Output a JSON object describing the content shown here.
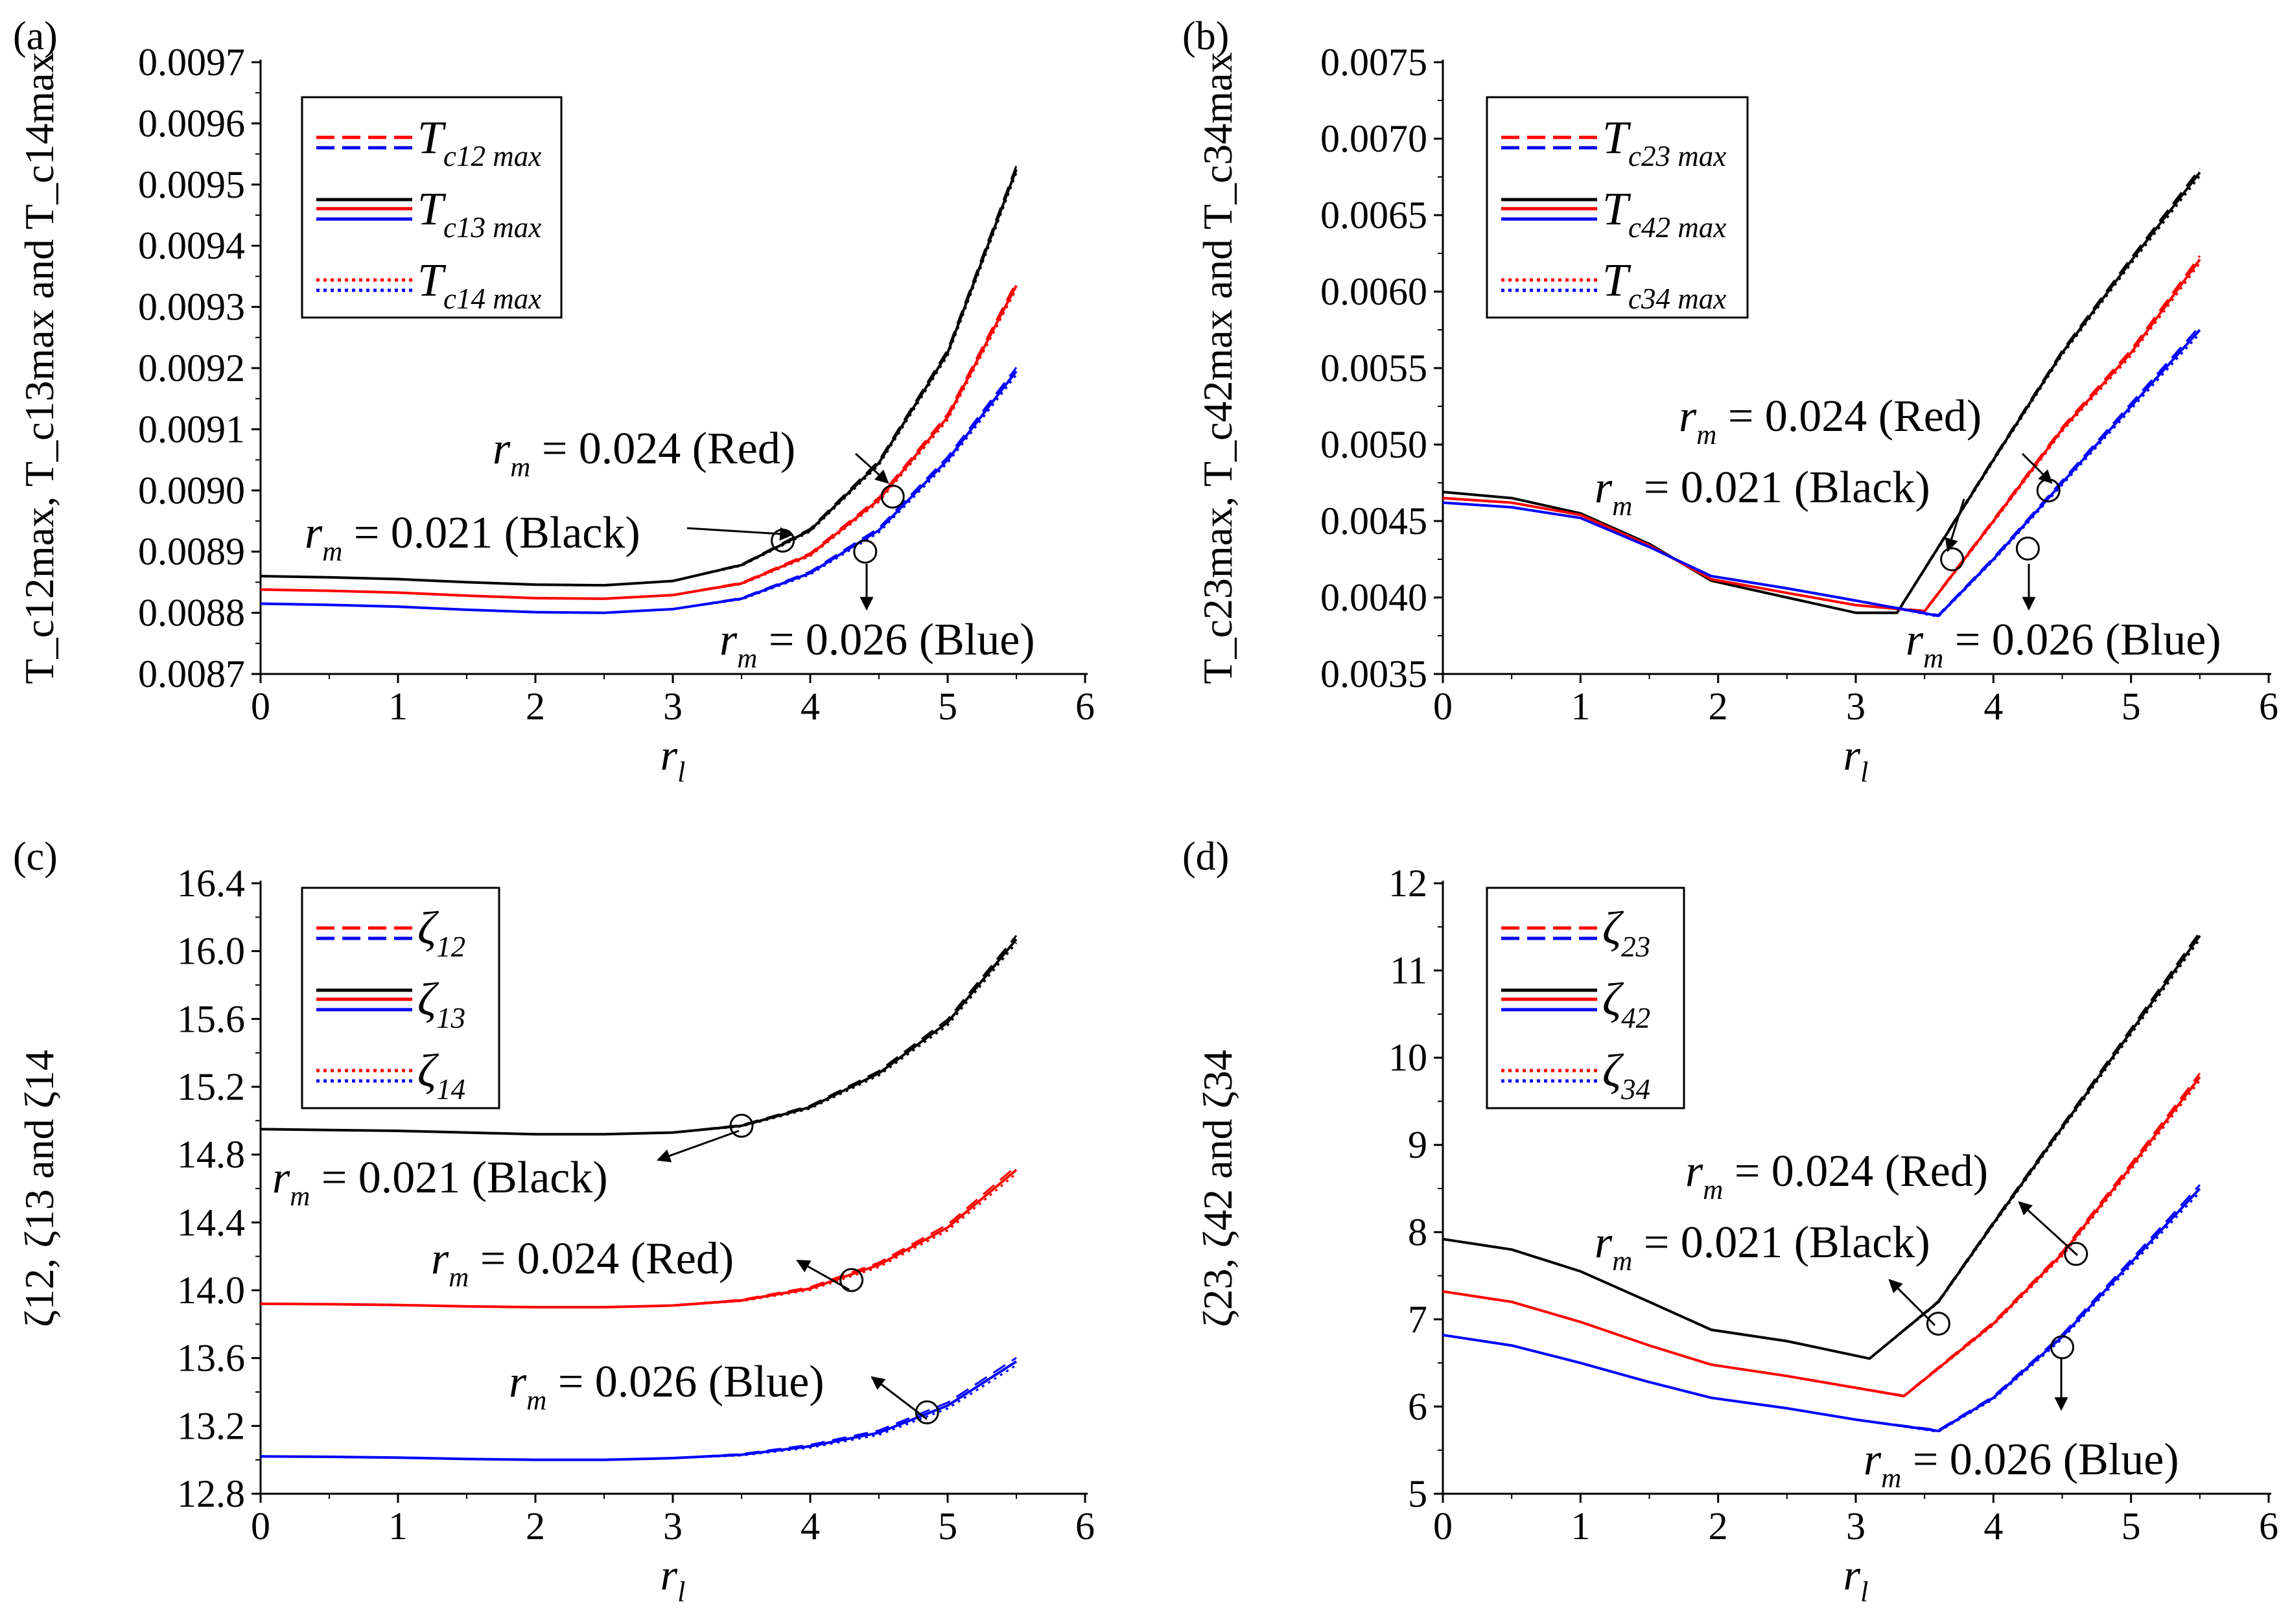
{
  "chart_data": [
    {
      "id": "a",
      "type": "line",
      "panel_label": "(a)",
      "title": "",
      "xlabel": "r_l",
      "ylabel": "T_c12max, T_c13max and T_c14max",
      "xlim": [
        0,
        6
      ],
      "ylim": [
        0.0087,
        0.0097
      ],
      "xticks": [
        "0",
        "1",
        "2",
        "3",
        "4",
        "5",
        "6"
      ],
      "yticks": [
        "0.0087",
        "0.0088",
        "0.0089",
        "0.0090",
        "0.0091",
        "0.0092",
        "0.0093",
        "0.0094",
        "0.0095",
        "0.0096",
        "0.0097"
      ],
      "legend_position": "top-left",
      "legend": [
        {
          "style": "dashed",
          "label": "T",
          "sub": "c12 max"
        },
        {
          "style": "solid",
          "label": "T",
          "sub": "c13 max"
        },
        {
          "style": "dotted",
          "label": "T",
          "sub": "c14 max"
        }
      ],
      "series": [
        {
          "name": "r_m = 0.021 (Black)",
          "color": "#000000",
          "x": [
            0,
            0.5,
            1,
            1.5,
            2,
            2.5,
            3,
            3.5,
            4,
            4.5,
            5,
            5.5
          ],
          "values": [
            0.00886,
            0.008858,
            0.008855,
            0.00885,
            0.008846,
            0.008845,
            0.008852,
            0.008878,
            0.008935,
            0.009045,
            0.009225,
            0.009525
          ]
        },
        {
          "name": "r_m = 0.024 (Red)",
          "color": "#ff0000",
          "x": [
            0,
            0.5,
            1,
            1.5,
            2,
            2.5,
            3,
            3.5,
            4,
            4.5,
            5,
            5.5
          ],
          "values": [
            0.008838,
            0.008836,
            0.008833,
            0.008828,
            0.008824,
            0.008823,
            0.008829,
            0.008848,
            0.008895,
            0.008985,
            0.00912,
            0.009335
          ]
        },
        {
          "name": "r_m = 0.026 (Blue)",
          "color": "#0000ff",
          "x": [
            0,
            0.5,
            1,
            1.5,
            2,
            2.5,
            3,
            3.5,
            4,
            4.5,
            5,
            5.5
          ],
          "values": [
            0.008815,
            0.008813,
            0.00881,
            0.008805,
            0.008801,
            0.0088,
            0.008806,
            0.008823,
            0.008865,
            0.008935,
            0.00905,
            0.009195
          ]
        }
      ],
      "annotations": [
        {
          "lead": "r",
          "sub": "m",
          "rest": " = 0.024 (Red)"
        },
        {
          "lead": "r",
          "sub": "m",
          "rest": " = 0.021 (Black)"
        },
        {
          "lead": "r",
          "sub": "m",
          "rest": " = 0.026 (Blue)"
        }
      ]
    },
    {
      "id": "b",
      "type": "line",
      "panel_label": "(b)",
      "title": "",
      "xlabel": "r_l",
      "ylabel": "T_c23max, T_c42max and T_c34max",
      "xlim": [
        0,
        6
      ],
      "ylim": [
        0.0035,
        0.0075
      ],
      "xticks": [
        "0",
        "1",
        "2",
        "3",
        "4",
        "5",
        "6"
      ],
      "yticks": [
        "0.0035",
        "0.0040",
        "0.0045",
        "0.0050",
        "0.0055",
        "0.0060",
        "0.0065",
        "0.0070",
        "0.0075"
      ],
      "legend_position": "top-left",
      "legend": [
        {
          "style": "dashed",
          "label": "T",
          "sub": "c23 max"
        },
        {
          "style": "solid",
          "label": "T",
          "sub": "c42 max"
        },
        {
          "style": "dotted",
          "label": "T",
          "sub": "c34 max"
        }
      ],
      "series": [
        {
          "name": "r_m = 0.021 (Black)",
          "color": "#000000",
          "x": [
            0,
            0.5,
            1,
            1.5,
            1.95,
            2.5,
            3.0,
            3.3,
            4.0,
            4.5,
            5.0,
            5.5
          ],
          "values": [
            0.00469,
            0.00465,
            0.00455,
            0.00435,
            0.00411,
            0.004,
            0.0039,
            0.0039,
            0.0049,
            0.0056,
            0.0062,
            0.00678
          ]
        },
        {
          "name": "r_m = 0.024 (Red)",
          "color": "#ff0000",
          "x": [
            0,
            0.5,
            1,
            1.5,
            1.95,
            2.5,
            3.0,
            3.5,
            4.0,
            4.5,
            5.0,
            5.5
          ],
          "values": [
            0.00465,
            0.00462,
            0.00454,
            0.00434,
            0.00412,
            0.00403,
            0.00395,
            0.00391,
            0.0045,
            0.0051,
            0.0056,
            0.00621
          ]
        },
        {
          "name": "r_m = 0.026 (Blue)",
          "color": "#0000ff",
          "x": [
            0,
            0.5,
            1,
            1.5,
            1.95,
            2.5,
            3.0,
            3.6,
            4.0,
            4.5,
            5.0,
            5.5
          ],
          "values": [
            0.00462,
            0.00459,
            0.00452,
            0.00433,
            0.00414,
            0.00406,
            0.00398,
            0.00388,
            0.00425,
            0.00475,
            0.00525,
            0.00575
          ]
        }
      ],
      "annotations": [
        {
          "lead": "r",
          "sub": "m",
          "rest": " = 0.024 (Red)"
        },
        {
          "lead": "r",
          "sub": "m",
          "rest": " = 0.021 (Black)"
        },
        {
          "lead": "r",
          "sub": "m",
          "rest": " = 0.026 (Blue)"
        }
      ]
    },
    {
      "id": "c",
      "type": "line",
      "panel_label": "(c)",
      "title": "",
      "xlabel": "r_l",
      "ylabel": "ζ12, ζ13 and ζ14",
      "xlim": [
        0,
        6
      ],
      "ylim": [
        12.8,
        16.4
      ],
      "xticks": [
        "0",
        "1",
        "2",
        "3",
        "4",
        "5",
        "6"
      ],
      "yticks": [
        "12.8",
        "13.2",
        "13.6",
        "14.0",
        "14.4",
        "14.8",
        "15.2",
        "15.6",
        "16.0",
        "16.4"
      ],
      "legend_position": "top-left",
      "legend": [
        {
          "style": "dashed",
          "label": "ζ",
          "sub": "12"
        },
        {
          "style": "solid",
          "label": "ζ",
          "sub": "13"
        },
        {
          "style": "dotted",
          "label": "ζ",
          "sub": "14"
        }
      ],
      "series": [
        {
          "name": "r_m = 0.021 (Black)",
          "color": "#000000",
          "x": [
            0,
            0.5,
            1,
            1.5,
            2,
            2.5,
            3,
            3.5,
            4,
            4.5,
            5,
            5.5
          ],
          "values": [
            14.95,
            14.945,
            14.94,
            14.93,
            14.92,
            14.92,
            14.93,
            14.97,
            15.08,
            15.28,
            15.58,
            16.07
          ]
        },
        {
          "name": "r_m = 0.024 (Red)",
          "color": "#ff0000",
          "x": [
            0,
            0.5,
            1,
            1.5,
            2,
            2.5,
            3,
            3.5,
            4,
            4.5,
            5,
            5.5
          ],
          "values": [
            13.92,
            13.918,
            13.913,
            13.905,
            13.9,
            13.9,
            13.91,
            13.94,
            14.01,
            14.15,
            14.37,
            14.71
          ]
        },
        {
          "name": "r_m = 0.026 (Blue)",
          "color": "#0000ff",
          "x": [
            0,
            0.5,
            1,
            1.5,
            2,
            2.5,
            3,
            3.5,
            4,
            4.5,
            5,
            5.5
          ],
          "values": [
            13.02,
            13.018,
            13.013,
            13.005,
            13.0,
            13.0,
            13.01,
            13.03,
            13.08,
            13.16,
            13.32,
            13.58
          ]
        }
      ],
      "annotations": [
        {
          "lead": "r",
          "sub": "m",
          "rest": " = 0.021 (Black)"
        },
        {
          "lead": "r",
          "sub": "m",
          "rest": " = 0.024 (Red)"
        },
        {
          "lead": "r",
          "sub": "m",
          "rest": " = 0.026 (Blue)"
        }
      ]
    },
    {
      "id": "d",
      "type": "line",
      "panel_label": "(d)",
      "title": "",
      "xlabel": "r_l",
      "ylabel": "ζ23, ζ42 and ζ34",
      "xlim": [
        0,
        6
      ],
      "ylim": [
        5,
        12
      ],
      "xticks": [
        "0",
        "1",
        "2",
        "3",
        "4",
        "5",
        "6"
      ],
      "yticks": [
        "5",
        "6",
        "7",
        "8",
        "9",
        "10",
        "11",
        "12"
      ],
      "legend_position": "top-left",
      "legend": [
        {
          "style": "dashed",
          "label": "ζ",
          "sub": "23"
        },
        {
          "style": "solid",
          "label": "ζ",
          "sub": "42"
        },
        {
          "style": "dotted",
          "label": "ζ",
          "sub": "34"
        }
      ],
      "series": [
        {
          "name": "r_m = 0.021 (Black)",
          "color": "#000000",
          "x": [
            0,
            0.5,
            1,
            1.5,
            1.95,
            2.5,
            3.1,
            3.6,
            4.0,
            4.5,
            5.0,
            5.5
          ],
          "values": [
            7.92,
            7.8,
            7.55,
            7.2,
            6.88,
            6.75,
            6.55,
            7.2,
            8.1,
            9.2,
            10.3,
            11.4
          ]
        },
        {
          "name": "r_m = 0.024 (Red)",
          "color": "#ff0000",
          "x": [
            0,
            0.5,
            1,
            1.5,
            1.95,
            2.5,
            3.35,
            4.0,
            4.5,
            5.0,
            5.5
          ],
          "values": [
            7.32,
            7.2,
            6.97,
            6.7,
            6.48,
            6.35,
            6.12,
            6.95,
            7.75,
            8.75,
            9.78
          ]
        },
        {
          "name": "r_m = 0.026 (Blue)",
          "color": "#0000ff",
          "x": [
            0,
            0.5,
            1,
            1.5,
            1.95,
            2.5,
            3.0,
            3.6,
            4.0,
            4.5,
            5.0,
            5.5
          ],
          "values": [
            6.82,
            6.7,
            6.5,
            6.28,
            6.1,
            5.98,
            5.85,
            5.72,
            6.1,
            6.8,
            7.65,
            8.5
          ]
        }
      ],
      "annotations": [
        {
          "lead": "r",
          "sub": "m",
          "rest": " = 0.024 (Red)"
        },
        {
          "lead": "r",
          "sub": "m",
          "rest": " = 0.021 (Black)"
        },
        {
          "lead": "r",
          "sub": "m",
          "rest": " = 0.026 (Blue)"
        }
      ]
    }
  ]
}
